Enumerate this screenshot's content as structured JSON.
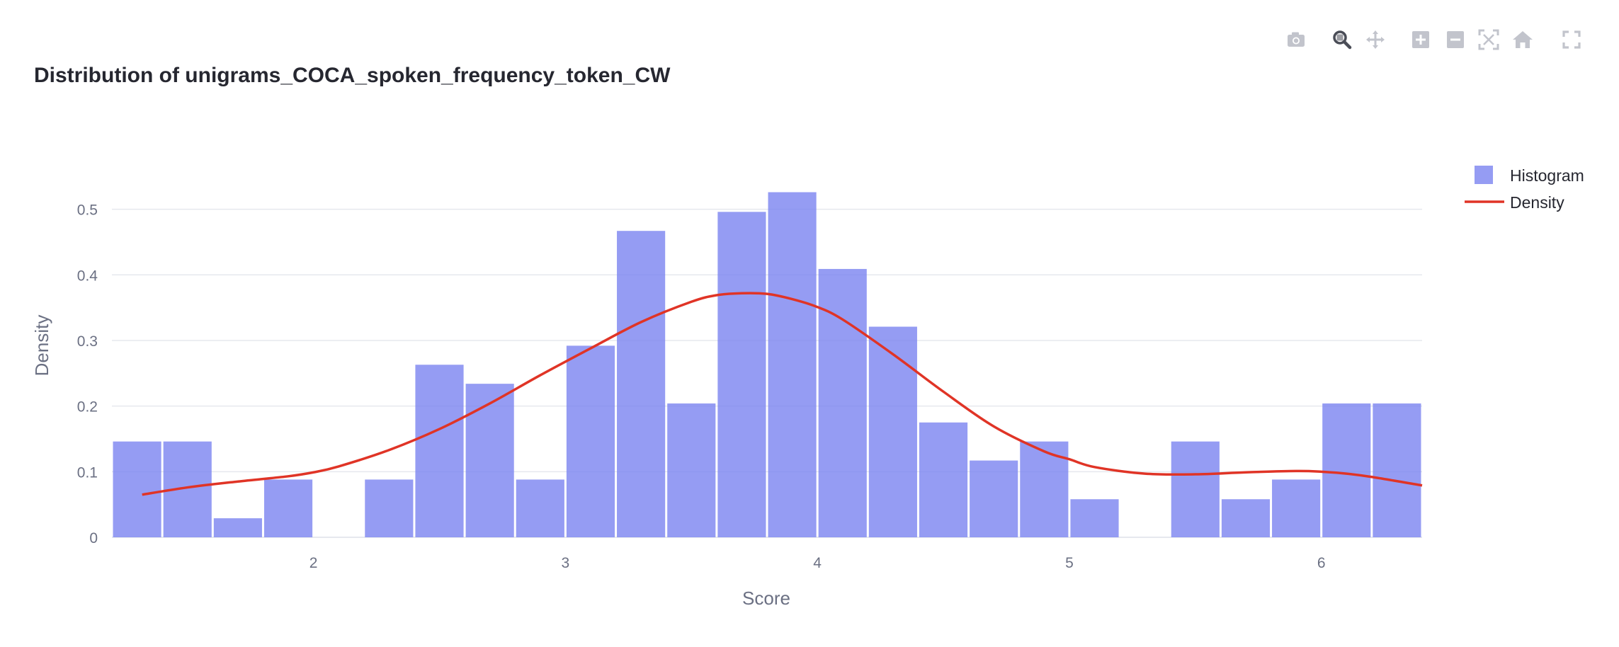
{
  "modebar": [
    {
      "icon": "camera-icon",
      "title": "Download plot as a png"
    },
    {
      "icon": "zoom-icon",
      "title": "Zoom"
    },
    {
      "icon": "pan-icon",
      "title": "Pan"
    },
    {
      "icon": "zoom-in-icon",
      "title": "Zoom in"
    },
    {
      "icon": "zoom-out-icon",
      "title": "Zoom out"
    },
    {
      "icon": "autoscale-icon",
      "title": "Autoscale"
    },
    {
      "icon": "reset-axes-icon",
      "title": "Reset axes"
    },
    {
      "icon": "fullscreen-icon",
      "title": "Fullscreen"
    }
  ],
  "chart_data": {
    "type": "bar",
    "title": "Distribution of unigrams_COCA_spoken_frequency_token_CW",
    "xlabel": "Score",
    "ylabel": "Density",
    "xlim": [
      1.2,
      6.4
    ],
    "ylim": [
      0,
      0.56
    ],
    "xticks": [
      2,
      3,
      4,
      5,
      6
    ],
    "yticks": [
      0,
      0.1,
      0.2,
      0.3,
      0.4,
      0.5
    ],
    "yticklabels": [
      "0",
      "0.1",
      "0.2",
      "0.3",
      "0.4",
      "0.5"
    ],
    "grid": true,
    "legend_position": "top-right",
    "colors": {
      "histogram": "#7b83f0",
      "density": "#e03426",
      "grid": "#e6e8ee",
      "text": "#6b7083",
      "title": "#262730"
    },
    "series": [
      {
        "name": "Histogram",
        "kind": "bar",
        "bin_start": 1.2,
        "bin_width": 0.2,
        "values": [
          0.146,
          0.146,
          0.029,
          0.088,
          0.0,
          0.088,
          0.263,
          0.234,
          0.088,
          0.292,
          0.467,
          0.204,
          0.496,
          0.526,
          0.409,
          0.321,
          0.175,
          0.117,
          0.146,
          0.058,
          0.0,
          0.146,
          0.058,
          0.088,
          0.204,
          0.204
        ]
      },
      {
        "name": "Density",
        "kind": "line",
        "x": [
          1.32,
          1.5,
          1.7,
          1.9,
          2.0,
          2.1,
          2.3,
          2.5,
          2.7,
          2.9,
          3.1,
          3.3,
          3.5,
          3.6,
          3.7,
          3.8,
          3.9,
          4.0,
          4.1,
          4.3,
          4.5,
          4.7,
          4.9,
          5.0,
          5.1,
          5.3,
          5.5,
          5.7,
          5.9,
          6.0,
          6.1,
          6.2,
          6.4
        ],
        "y": [
          0.065,
          0.076,
          0.085,
          0.093,
          0.099,
          0.108,
          0.133,
          0.165,
          0.204,
          0.247,
          0.288,
          0.328,
          0.359,
          0.369,
          0.372,
          0.371,
          0.363,
          0.351,
          0.332,
          0.279,
          0.222,
          0.169,
          0.131,
          0.119,
          0.107,
          0.097,
          0.096,
          0.099,
          0.101,
          0.1,
          0.097,
          0.092,
          0.079
        ]
      }
    ]
  }
}
